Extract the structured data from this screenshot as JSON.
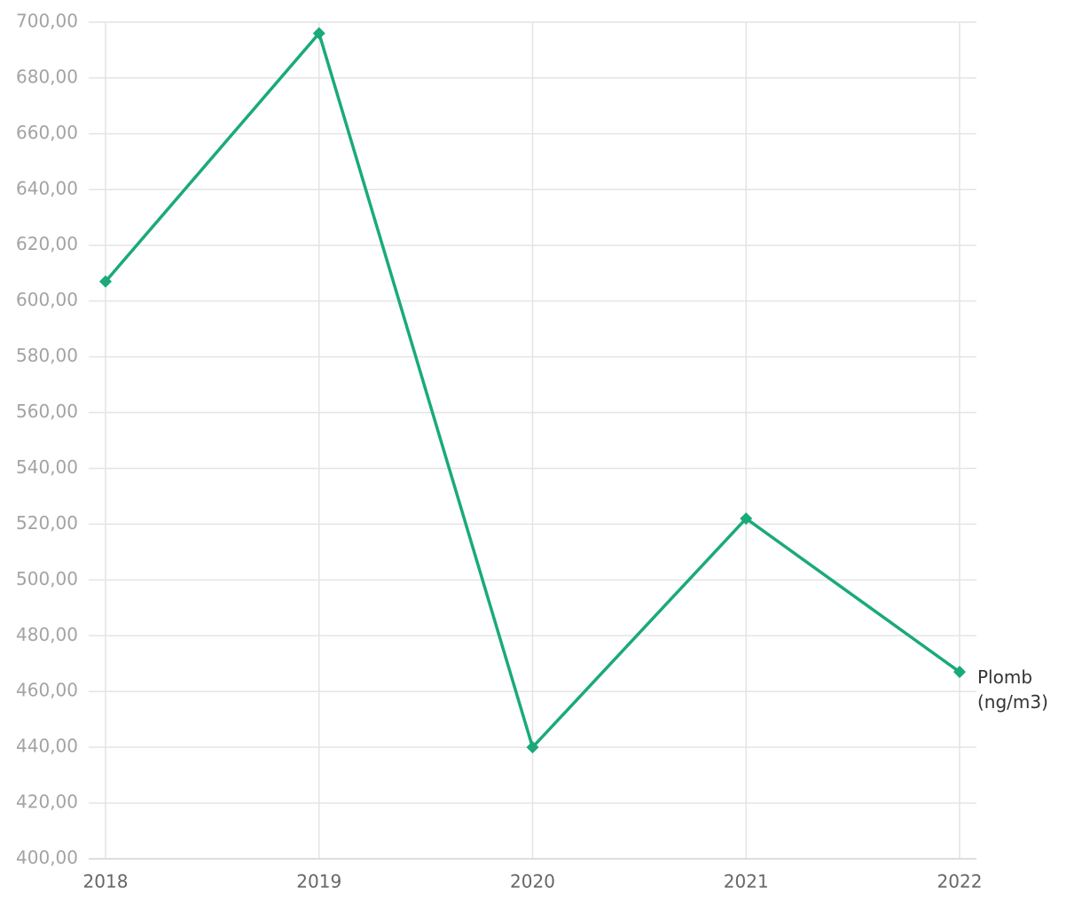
{
  "chart_data": {
    "type": "line",
    "categories": [
      "2018",
      "2019",
      "2020",
      "2021",
      "2022"
    ],
    "series": [
      {
        "name": "Plomb (ng/m3)",
        "color": "#1aaa78",
        "values": [
          607,
          696,
          440,
          522,
          467
        ]
      }
    ],
    "ylim": [
      400,
      700
    ],
    "yticks": [
      {
        "value": 400,
        "label": "400,00"
      },
      {
        "value": 420,
        "label": "420,00"
      },
      {
        "value": 440,
        "label": "440,00"
      },
      {
        "value": 460,
        "label": "460,00"
      },
      {
        "value": 480,
        "label": "480,00"
      },
      {
        "value": 500,
        "label": "500,00"
      },
      {
        "value": 520,
        "label": "520,00"
      },
      {
        "value": 540,
        "label": "540,00"
      },
      {
        "value": 560,
        "label": "560,00"
      },
      {
        "value": 580,
        "label": "580,00"
      },
      {
        "value": 600,
        "label": "600,00"
      },
      {
        "value": 620,
        "label": "620,00"
      },
      {
        "value": 640,
        "label": "640,00"
      },
      {
        "value": 660,
        "label": "660,00"
      },
      {
        "value": 680,
        "label": "680,00"
      },
      {
        "value": 700,
        "label": "700,00"
      }
    ],
    "grid": true
  }
}
